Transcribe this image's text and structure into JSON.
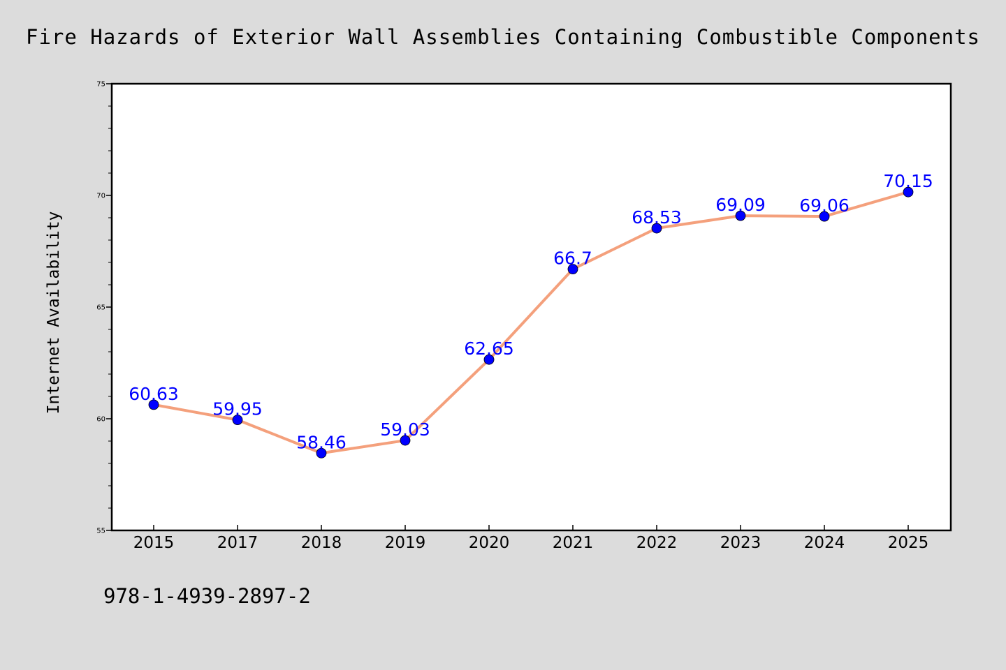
{
  "chart_data": {
    "type": "line",
    "title": "Fire Hazards of Exterior Wall Assemblies Containing Combustible Components",
    "xlabel": "",
    "ylabel": "Internet Availability",
    "categories": [
      "2015",
      "2017",
      "2018",
      "2019",
      "2020",
      "2021",
      "2022",
      "2023",
      "2024",
      "2025"
    ],
    "series": [
      {
        "values": [
          60.63,
          59.95,
          58.46,
          59.03,
          62.65,
          66.7,
          68.53,
          69.09,
          69.06,
          70.15
        ],
        "labels": [
          "60.63",
          "59.95",
          "58.46",
          "59.03",
          "62.65",
          "66.7",
          "68.53",
          "69.09",
          "69.06",
          "70.15"
        ]
      }
    ],
    "ylim": [
      55,
      75
    ],
    "yticks": [
      "55",
      "60",
      "65",
      "70",
      "75"
    ],
    "grid": false,
    "legend": "none",
    "colors": {
      "line": "#f4a07c",
      "marker": "#0000ff",
      "data_label": "#0000ff",
      "plot_background": "#ffffff",
      "figure_background": "#dcdcdc"
    }
  },
  "footnote": "978-1-4939-2897-2"
}
